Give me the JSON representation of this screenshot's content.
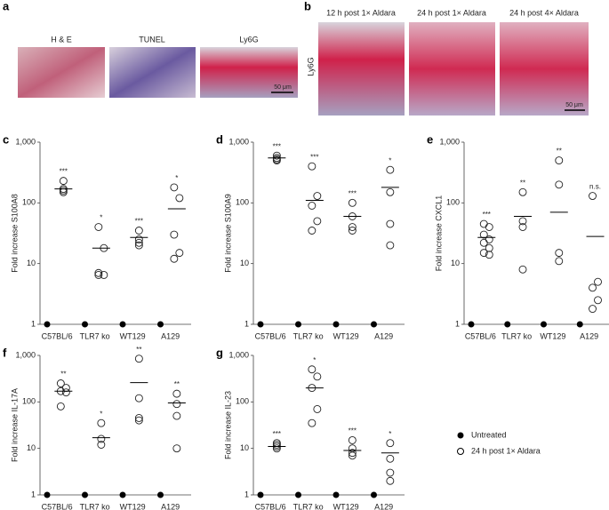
{
  "panel_a": {
    "label": "a",
    "images": [
      "H & E",
      "TUNEL",
      "Ly6G"
    ],
    "scale_bar": "50 μm"
  },
  "panel_b": {
    "label": "b",
    "ylabel": "Ly6G",
    "images": [
      "12 h post 1× Aldara",
      "24 h post 1× Aldara",
      "24 h post 4× Aldara"
    ],
    "scale_bar": "50 μm"
  },
  "legend": [
    "Untreated",
    "24 h post 1× Aldara"
  ],
  "chart_data": [
    {
      "type": "dot",
      "panel": "c",
      "ylabel": "Fold increase S100A8",
      "log": true,
      "categories": [
        "C57BL/6",
        "TLR7 ko",
        "WT129",
        "A129"
      ],
      "ylim": [
        1,
        1000
      ],
      "yticks": [
        1,
        10,
        100,
        {
          "value": 1000,
          "label": "1,000"
        }
      ],
      "untreated": [
        1,
        1,
        1,
        1
      ],
      "treated": [
        [
          230,
          170,
          160,
          150
        ],
        [
          40,
          18,
          7,
          6.5,
          6.5
        ],
        [
          35,
          25,
          22,
          20
        ],
        [
          180,
          120,
          30,
          15,
          12
        ]
      ],
      "means": [
        170,
        18,
        27,
        80
      ],
      "significance": [
        "***",
        "*",
        "***",
        "*"
      ]
    },
    {
      "type": "dot",
      "panel": "d",
      "ylabel": "Fold increase S100A9",
      "log": true,
      "categories": [
        "C57BL/6",
        "TLR7 ko",
        "WT129",
        "A129"
      ],
      "ylim": [
        1,
        1000
      ],
      "yticks": [
        1,
        10,
        100,
        {
          "value": 1000,
          "label": "1,000"
        }
      ],
      "untreated": [
        1,
        1,
        1,
        1
      ],
      "treated": [
        [
          600,
          550,
          500,
          520
        ],
        [
          400,
          130,
          90,
          50,
          35
        ],
        [
          100,
          60,
          40,
          35
        ],
        [
          350,
          150,
          45,
          20
        ]
      ],
      "means": [
        550,
        110,
        60,
        180
      ],
      "significance": [
        "***",
        "***",
        "***",
        "*"
      ]
    },
    {
      "type": "dot",
      "panel": "e",
      "ylabel": "Fold increase CXCL1",
      "log": true,
      "categories": [
        "C57BL/6",
        "TLR7 ko",
        "WT129",
        "A129"
      ],
      "ylim": [
        1,
        1000
      ],
      "yticks": [
        1,
        10,
        100,
        {
          "value": 1000,
          "label": "1,000"
        }
      ],
      "untreated": [
        1,
        1,
        1,
        1
      ],
      "treated": [
        [
          45,
          40,
          30,
          25,
          22,
          18,
          15,
          14
        ],
        [
          150,
          50,
          40,
          8
        ],
        [
          500,
          200,
          15,
          11
        ],
        [
          130,
          5,
          4,
          2.5,
          1.8
        ]
      ],
      "means": [
        27,
        60,
        70,
        28
      ],
      "significance": [
        "***",
        "**",
        "**",
        "n.s."
      ]
    },
    {
      "type": "dot",
      "panel": "f",
      "ylabel": "Fold increase IL-17A",
      "log": true,
      "categories": [
        "C57BL/6",
        "TLR7 ko",
        "WT129",
        "A129"
      ],
      "ylim": [
        1,
        1000
      ],
      "yticks": [
        1,
        10,
        100,
        {
          "value": 1000,
          "label": "1,000"
        }
      ],
      "untreated": [
        1,
        1,
        1,
        1
      ],
      "treated": [
        [
          250,
          200,
          170,
          160,
          80
        ],
        [
          35,
          16,
          12
        ],
        [
          850,
          120,
          45,
          40
        ],
        [
          150,
          90,
          50,
          10
        ]
      ],
      "means": [
        170,
        17,
        260,
        95
      ],
      "significance": [
        "**",
        "*",
        "**",
        "**"
      ]
    },
    {
      "type": "dot",
      "panel": "g",
      "ylabel": "Fold increase IL-23",
      "log": true,
      "categories": [
        "C57BL/6",
        "TLR7 ko",
        "WT129",
        "A129"
      ],
      "ylim": [
        1,
        1000
      ],
      "yticks": [
        1,
        10,
        100,
        {
          "value": 1000,
          "label": "1,000"
        }
      ],
      "untreated": [
        1,
        1,
        1,
        1
      ],
      "treated": [
        [
          13,
          12,
          11,
          10
        ],
        [
          500,
          350,
          200,
          70,
          35
        ],
        [
          15,
          10,
          8,
          7
        ],
        [
          13,
          6,
          3,
          2
        ]
      ],
      "means": [
        11,
        200,
        9,
        8
      ],
      "significance": [
        "***",
        "*",
        "***",
        "*"
      ]
    }
  ]
}
